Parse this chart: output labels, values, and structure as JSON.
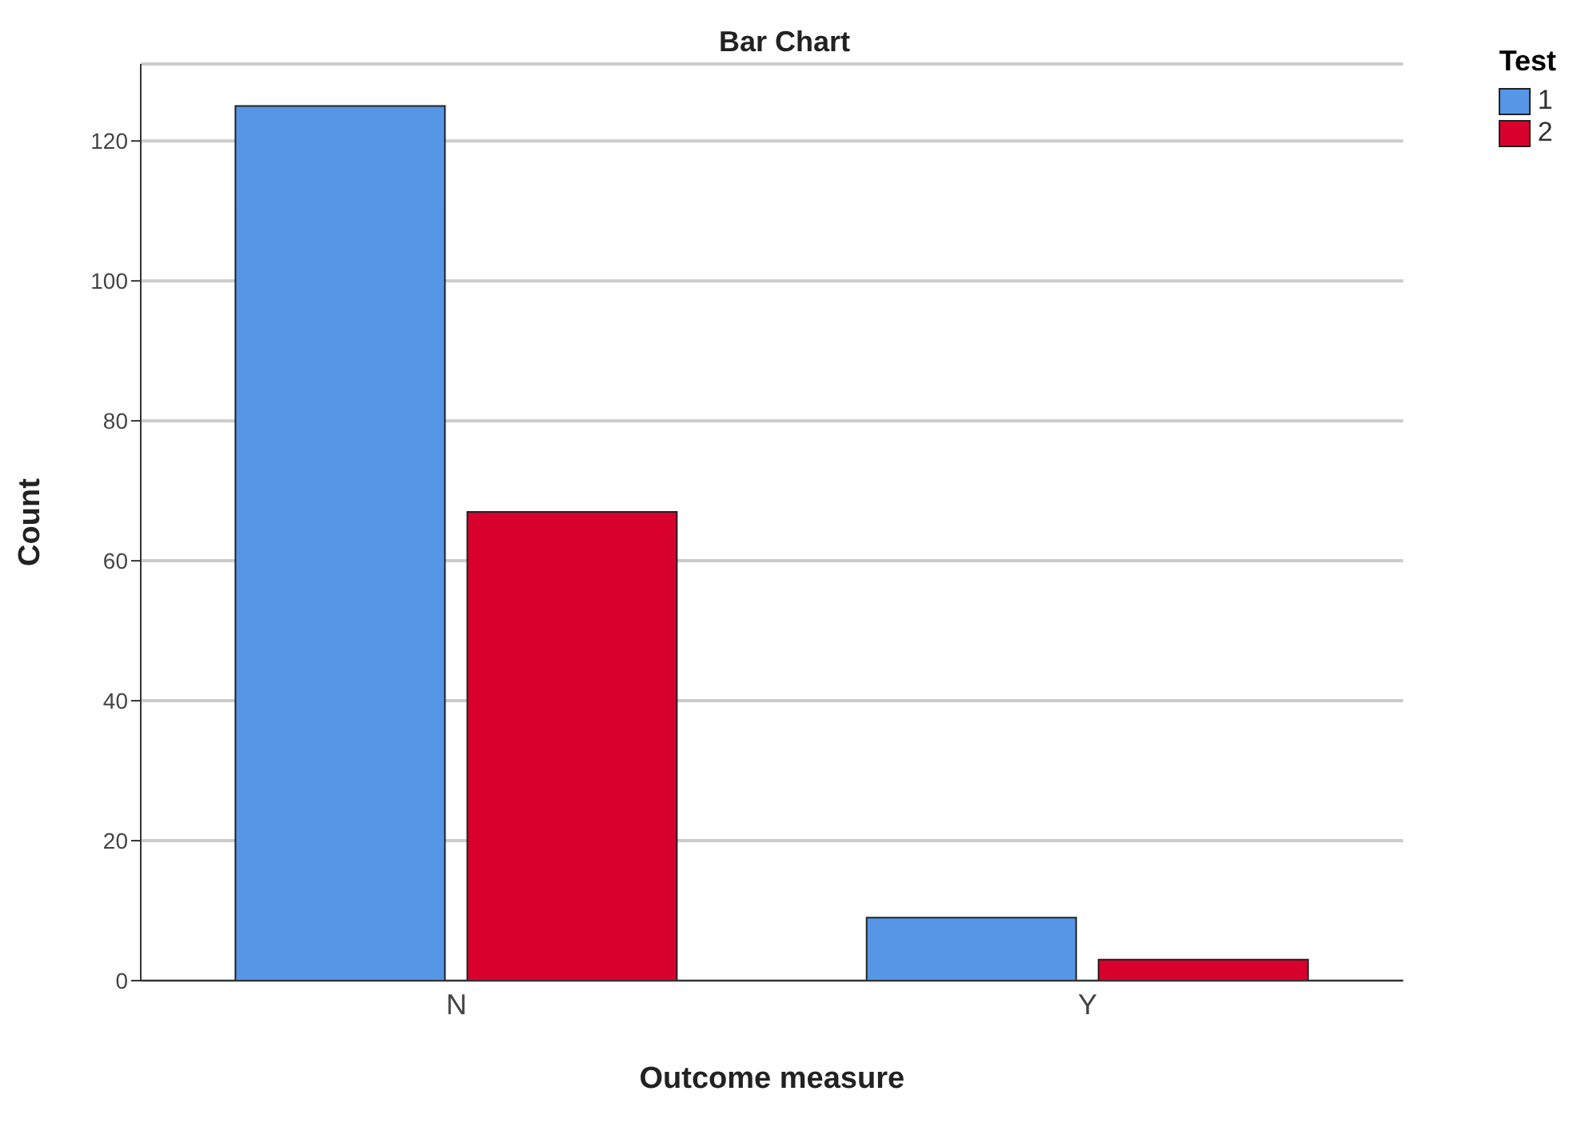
{
  "chart_data": {
    "type": "bar",
    "title": "Bar Chart",
    "xlabel": "Outcome measure",
    "ylabel": "Count",
    "legend_title": "Test",
    "categories": [
      "N",
      "Y"
    ],
    "series": [
      {
        "name": "1",
        "color": "#5596e6",
        "values": [
          125,
          9
        ]
      },
      {
        "name": "2",
        "color": "#d8002c",
        "values": [
          67,
          3
        ]
      }
    ],
    "ylim": [
      0,
      131
    ],
    "yticks": [
      0,
      20,
      40,
      60,
      80,
      100,
      120
    ],
    "grid": "y",
    "legend": "top right"
  }
}
